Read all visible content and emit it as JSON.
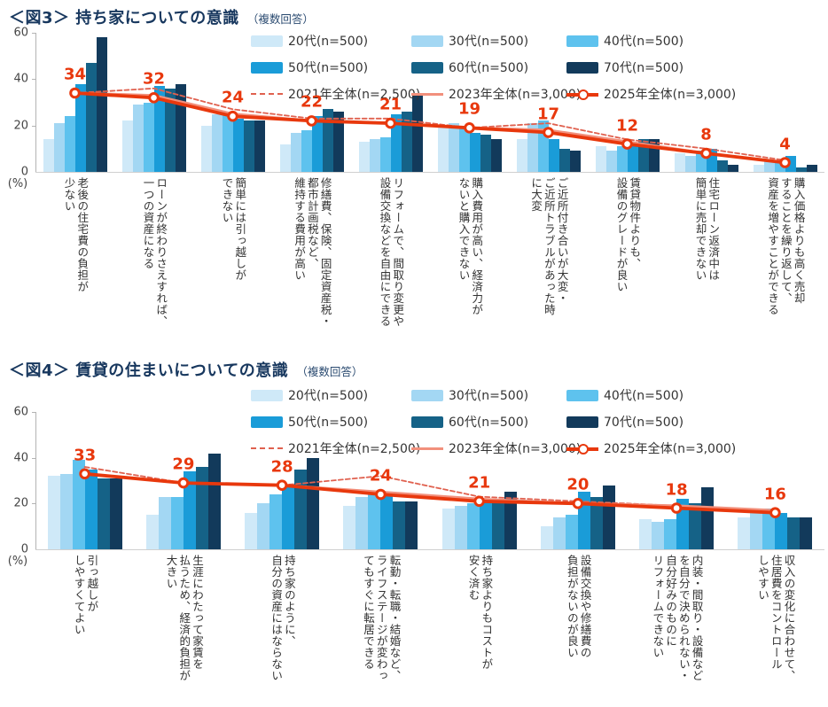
{
  "accent_red": "#e8380d",
  "chart_data": [
    {
      "id": "fig3",
      "type": "bar+line",
      "title": "＜図3＞ 持ち家についての意識",
      "subtitle": "（複数回答）",
      "ylabel": "(%)",
      "ylim": [
        0,
        60
      ],
      "y_ticks": [
        0,
        20,
        40,
        60
      ],
      "grid": false,
      "legend_position": "top-right",
      "categories": [
        "老後の住宅費の負担が\n少ない",
        "ローンが終わりさえすれば、\n一つの資産になる",
        "簡単には引っ越しが\nできない",
        "修繕費、保険、固定資産税・\n都市計画税など、\n維持する費用が高い",
        "リフォームで、間取り変更や\n設備交換などを自由にできる",
        "購入費用が高い、経済力が\nないと購入できない",
        "ご近所付き合いが大変・\nご近所トラブルがあった時\nに大変",
        "賃貸物件よりも、\n設備のグレードが良い",
        "住宅ローン返済中は\n簡単に売却できない",
        "購入価格よりも高く売却\nすることを繰り返して、\n資産を増やすことができる"
      ],
      "bar_series": [
        {
          "name": "20代(n=500)",
          "color": "#cfe9f8",
          "values": [
            14,
            22,
            20,
            12,
            13,
            20,
            14,
            11,
            8,
            3
          ]
        },
        {
          "name": "30代(n=500)",
          "color": "#a3d7f3",
          "values": [
            21,
            29,
            25,
            17,
            14,
            21,
            21,
            9,
            7,
            5
          ]
        },
        {
          "name": "40代(n=500)",
          "color": "#5ec2ee",
          "values": [
            24,
            30,
            25,
            18,
            15,
            19,
            22,
            11,
            9,
            5
          ]
        },
        {
          "name": "50代(n=500)",
          "color": "#1a9cd8",
          "values": [
            38,
            37,
            23,
            24,
            25,
            17,
            14,
            12,
            10,
            7
          ]
        },
        {
          "name": "60代(n=500)",
          "color": "#156287",
          "values": [
            47,
            36,
            22,
            27,
            26,
            16,
            10,
            14,
            5,
            2
          ]
        },
        {
          "name": "70代(n=500)",
          "color": "#123a5b",
          "values": [
            58,
            38,
            22,
            26,
            34,
            14,
            9,
            14,
            3,
            3
          ]
        }
      ],
      "line_series": [
        {
          "name": "2021年全体(n=2,500)",
          "color": "#e0614f",
          "style": "dashed",
          "values": [
            34,
            36,
            27,
            23,
            23,
            19,
            21,
            14,
            10,
            5
          ],
          "show_labels": false
        },
        {
          "name": "2023年全体(n=3,000)",
          "color": "#f2907c",
          "style": "solid",
          "values": [
            34,
            33,
            25,
            22,
            21,
            19,
            18,
            13,
            8,
            4
          ],
          "show_labels": false
        },
        {
          "name": "2025年全体(n=3,000)",
          "color": "#e8380d",
          "style": "solid-marker",
          "values": [
            34,
            32,
            24,
            22,
            21,
            19,
            17,
            12,
            8,
            4
          ],
          "show_labels": true
        }
      ]
    },
    {
      "id": "fig4",
      "type": "bar+line",
      "title": "＜図4＞ 賃貸の住まいについての意識",
      "subtitle": "（複数回答）",
      "ylabel": "(%)",
      "ylim": [
        0,
        60
      ],
      "y_ticks": [
        0,
        20,
        40,
        60
      ],
      "grid": false,
      "legend_position": "top-right",
      "categories": [
        "引っ越しが\nしやすくてよい",
        "生涯にわたって家賃を\n払うため、経済的負担が\n大きい",
        "持ち家のように、\n自分の資産にはならない",
        "転勤・転職・結婚など、\nライフステージが変わっ\nてもすぐに転居できる",
        "持ち家よりもコストが\n安く済む",
        "設備交換や修繕費の\n負担がないのが良い",
        "内装・間取り・設備など\nを自分で決められない・\n自分好みのものに\nリフォームできない",
        "収入の変化に合わせて、\n住居費をコントロール\nしやすい"
      ],
      "bar_series": [
        {
          "name": "20代(n=500)",
          "color": "#cfe9f8",
          "values": [
            32,
            15,
            16,
            19,
            18,
            10,
            13,
            14
          ]
        },
        {
          "name": "30代(n=500)",
          "color": "#a3d7f3",
          "values": [
            33,
            23,
            20,
            23,
            19,
            14,
            12,
            17
          ]
        },
        {
          "name": "40代(n=500)",
          "color": "#5ec2ee",
          "values": [
            39,
            23,
            24,
            24,
            20,
            15,
            13,
            18
          ]
        },
        {
          "name": "50代(n=500)",
          "color": "#1a9cd8",
          "values": [
            35,
            34,
            28,
            25,
            22,
            25,
            22,
            16
          ]
        },
        {
          "name": "60代(n=500)",
          "color": "#156287",
          "values": [
            31,
            36,
            35,
            21,
            21,
            23,
            20,
            14
          ]
        },
        {
          "name": "70代(n=500)",
          "color": "#123a5b",
          "values": [
            31,
            42,
            40,
            21,
            25,
            28,
            27,
            14
          ]
        }
      ],
      "line_series": [
        {
          "name": "2021年全体(n=2,500)",
          "color": "#e0614f",
          "style": "dashed",
          "values": [
            36,
            29,
            28,
            32,
            23,
            21,
            19,
            17
          ],
          "show_labels": false
        },
        {
          "name": "2023年全体(n=3,000)",
          "color": "#f2907c",
          "style": "solid",
          "values": [
            33,
            29,
            28,
            25,
            22,
            20,
            19,
            17
          ],
          "show_labels": false
        },
        {
          "name": "2025年全体(n=3,000)",
          "color": "#e8380d",
          "style": "solid-marker",
          "values": [
            33,
            29,
            28,
            24,
            21,
            20,
            18,
            16
          ],
          "show_labels": true
        }
      ]
    }
  ]
}
